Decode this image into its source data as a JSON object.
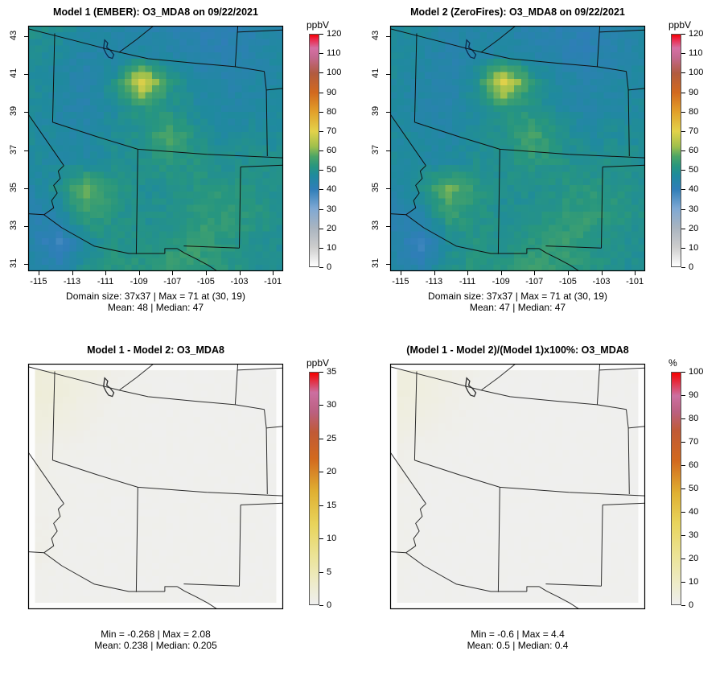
{
  "page": {
    "background": "#ffffff"
  },
  "basemap": {
    "lines": [
      [
        [
          0.0,
          0.012
        ],
        [
          0.18,
          0.06
        ],
        [
          0.357,
          0.108
        ]
      ],
      [
        [
          0.357,
          0.108
        ],
        [
          0.425,
          0.056
        ],
        [
          0.492,
          0.0
        ]
      ],
      [
        [
          0.357,
          0.108
        ],
        [
          0.47,
          0.134
        ],
        [
          0.65,
          0.152
        ],
        [
          0.812,
          0.167
        ],
        [
          0.926,
          0.186
        ]
      ],
      [
        [
          0.822,
          0.0
        ],
        [
          0.812,
          0.167
        ]
      ],
      [
        [
          0.82,
          0.026
        ],
        [
          1.0,
          0.017
        ]
      ],
      [
        [
          0.926,
          0.186
        ],
        [
          0.934,
          0.262
        ],
        [
          0.938,
          0.531
        ]
      ],
      [
        [
          0.934,
          0.262
        ],
        [
          1.0,
          0.255
        ]
      ],
      [
        [
          0.104,
          0.031
        ],
        [
          0.096,
          0.393
        ]
      ],
      [
        [
          0.096,
          0.393
        ],
        [
          0.27,
          0.452
        ],
        [
          0.43,
          0.503
        ],
        [
          0.7,
          0.524
        ],
        [
          1.0,
          0.538
        ]
      ],
      [
        [
          0.43,
          0.503
        ],
        [
          0.424,
          0.93
        ]
      ],
      [
        [
          0.0,
          0.36
        ],
        [
          0.07,
          0.465
        ],
        [
          0.14,
          0.57
        ]
      ],
      [
        [
          0.14,
          0.57
        ],
        [
          0.118,
          0.592
        ],
        [
          0.126,
          0.622
        ],
        [
          0.1,
          0.65
        ],
        [
          0.114,
          0.682
        ],
        [
          0.092,
          0.712
        ],
        [
          0.1,
          0.742
        ],
        [
          0.062,
          0.77
        ]
      ],
      [
        [
          0.0,
          0.766
        ],
        [
          0.062,
          0.77
        ]
      ],
      [
        [
          0.062,
          0.77
        ],
        [
          0.132,
          0.823
        ],
        [
          0.26,
          0.898
        ],
        [
          0.395,
          0.928
        ],
        [
          0.536,
          0.928
        ]
      ],
      [
        [
          0.536,
          0.928
        ],
        [
          0.536,
          0.908
        ],
        [
          0.585,
          0.908
        ]
      ],
      [
        [
          0.585,
          0.908
        ],
        [
          0.613,
          0.926
        ],
        [
          0.66,
          0.95
        ],
        [
          0.705,
          0.975
        ],
        [
          0.742,
          1.0
        ]
      ],
      [
        [
          0.61,
          0.897
        ],
        [
          0.828,
          0.906
        ]
      ],
      [
        [
          0.828,
          0.906
        ],
        [
          0.833,
          0.575
        ]
      ],
      [
        [
          0.833,
          0.575
        ],
        [
          1.0,
          0.568
        ]
      ]
    ],
    "lake": [
      [
        0.3,
        0.058
      ],
      [
        0.312,
        0.07
      ],
      [
        0.308,
        0.088
      ],
      [
        0.322,
        0.1
      ],
      [
        0.336,
        0.118
      ],
      [
        0.33,
        0.133
      ],
      [
        0.315,
        0.128
      ],
      [
        0.305,
        0.112
      ],
      [
        0.296,
        0.092
      ],
      [
        0.298,
        0.072
      ]
    ]
  },
  "chart_data": [
    {
      "type": "heatmap",
      "title": "Model 1 (EMBER): O3_MDA8 on 09/22/2021",
      "stats": [
        "Domain size: 37x37 | Max = 71 at (30, 19)",
        "Mean: 48 | Median: 47"
      ],
      "axes": true,
      "xlim": [
        -115.62,
        -100.38
      ],
      "ylim": [
        30.62,
        43.55
      ],
      "xticks": [
        -115,
        -113,
        -111,
        -109,
        -107,
        -105,
        -103,
        -101
      ],
      "yticks": [
        31,
        33,
        35,
        37,
        39,
        41,
        43
      ],
      "grid_size": "37x37",
      "jitter": 1.6,
      "edge_value": null,
      "line_color": "#101010",
      "lake_color": "#0d2b4d",
      "colorbar": {
        "label": "ppbV",
        "min": 0,
        "max": 120,
        "step": 10,
        "palette": [
          [
            0,
            "#ffffff"
          ],
          [
            10,
            "#cdcdcd"
          ],
          [
            20,
            "#a9b4c0"
          ],
          [
            30,
            "#7ea8d4"
          ],
          [
            40,
            "#2f7eb8"
          ],
          [
            47,
            "#1f8a9e"
          ],
          [
            52,
            "#27967f"
          ],
          [
            57,
            "#4da566"
          ],
          [
            62,
            "#9fc04c"
          ],
          [
            70,
            "#e3d24a"
          ],
          [
            80,
            "#e2a02a"
          ],
          [
            90,
            "#d2691e"
          ],
          [
            100,
            "#b15b3f"
          ],
          [
            108,
            "#c4688e"
          ],
          [
            113,
            "#d66fa4"
          ],
          [
            118,
            "#ee2040"
          ],
          [
            120,
            "#f50000"
          ]
        ]
      },
      "values": [
        [
          50,
          49,
          46,
          45,
          44,
          43,
          42,
          41,
          43,
          45
        ],
        [
          49,
          47,
          44,
          45,
          46,
          45,
          43,
          42,
          44,
          46
        ],
        [
          48,
          46,
          43,
          50,
          70,
          52,
          46,
          44,
          45,
          46
        ],
        [
          47,
          45,
          44,
          47,
          52,
          50,
          47,
          45,
          46,
          47
        ],
        [
          48,
          46,
          45,
          48,
          50,
          57,
          50,
          47,
          48,
          48
        ],
        [
          47,
          46,
          46,
          49,
          50,
          52,
          51,
          49,
          50,
          49
        ],
        [
          45,
          50,
          59,
          52,
          49,
          49,
          51,
          52,
          51,
          49
        ],
        [
          42,
          45,
          54,
          51,
          49,
          50,
          52,
          54,
          52,
          50
        ],
        [
          44,
          38,
          48,
          51,
          50,
          52,
          55,
          52,
          50,
          49
        ],
        [
          46,
          43,
          50,
          52,
          52,
          54,
          53,
          52,
          50,
          48
        ]
      ]
    },
    {
      "type": "heatmap",
      "title": "Model 2 (ZeroFires): O3_MDA8 on 09/22/2021",
      "stats": [
        "Domain size: 37x37 | Max = 71 at (30, 19)",
        "Mean: 47 | Median: 47"
      ],
      "axes": true,
      "xlim": [
        -115.62,
        -100.38
      ],
      "ylim": [
        30.62,
        43.55
      ],
      "xticks": [
        -115,
        -113,
        -111,
        -109,
        -107,
        -105,
        -103,
        -101
      ],
      "yticks": [
        31,
        33,
        35,
        37,
        39,
        41,
        43
      ],
      "grid_size": "37x37",
      "jitter": 1.6,
      "edge_value": null,
      "line_color": "#101010",
      "lake_color": "#0d2b4d",
      "colorbar": {
        "label": "ppbV",
        "min": 0,
        "max": 120,
        "step": 10,
        "palette": [
          [
            0,
            "#ffffff"
          ],
          [
            10,
            "#cdcdcd"
          ],
          [
            20,
            "#a9b4c0"
          ],
          [
            30,
            "#7ea8d4"
          ],
          [
            40,
            "#2f7eb8"
          ],
          [
            47,
            "#1f8a9e"
          ],
          [
            52,
            "#27967f"
          ],
          [
            57,
            "#4da566"
          ],
          [
            62,
            "#9fc04c"
          ],
          [
            70,
            "#e3d24a"
          ],
          [
            80,
            "#e2a02a"
          ],
          [
            90,
            "#d2691e"
          ],
          [
            100,
            "#b15b3f"
          ],
          [
            108,
            "#c4688e"
          ],
          [
            113,
            "#d66fa4"
          ],
          [
            118,
            "#ee2040"
          ],
          [
            120,
            "#f50000"
          ]
        ]
      },
      "values": [
        [
          48,
          47,
          45,
          45,
          44,
          43,
          42,
          41,
          43,
          45
        ],
        [
          47,
          46,
          43,
          45,
          46,
          45,
          43,
          42,
          44,
          46
        ],
        [
          47,
          45,
          43,
          50,
          70,
          52,
          46,
          44,
          45,
          46
        ],
        [
          46,
          45,
          44,
          47,
          52,
          50,
          47,
          45,
          46,
          47
        ],
        [
          47,
          46,
          45,
          48,
          50,
          57,
          50,
          47,
          48,
          48
        ],
        [
          47,
          46,
          46,
          49,
          50,
          52,
          51,
          49,
          50,
          49
        ],
        [
          45,
          50,
          59,
          52,
          49,
          49,
          51,
          52,
          51,
          49
        ],
        [
          42,
          45,
          54,
          51,
          49,
          50,
          52,
          54,
          52,
          50
        ],
        [
          44,
          38,
          48,
          51,
          50,
          52,
          55,
          52,
          50,
          49
        ],
        [
          46,
          43,
          50,
          52,
          52,
          54,
          53,
          52,
          50,
          48
        ]
      ]
    },
    {
      "type": "heatmap",
      "title": "Model 1 - Model 2: O3_MDA8",
      "stats": [
        "Min = -0.268 | Max = 2.08",
        "Mean: 0.238 |  Median: 0.205"
      ],
      "axes": false,
      "xlim": [
        -115.62,
        -100.38
      ],
      "ylim": [
        30.62,
        43.55
      ],
      "xticks": [],
      "yticks": [],
      "grid_size": "37x37",
      "jitter": 0.12,
      "edge_value": -0.5,
      "line_color": "#2e2e2e",
      "lake_color": "#2e2e2e",
      "colorbar": {
        "label": "ppbV",
        "min": 0,
        "max": 35,
        "step": 5,
        "palette": [
          [
            -0.5,
            "#fdfdfd"
          ],
          [
            0,
            "#efefef"
          ],
          [
            3,
            "#eeeccc"
          ],
          [
            7,
            "#ece49a"
          ],
          [
            12,
            "#e8d45c"
          ],
          [
            17,
            "#e0b032"
          ],
          [
            22,
            "#d2691e"
          ],
          [
            26,
            "#c05a36"
          ],
          [
            29,
            "#bb6080"
          ],
          [
            32,
            "#cc6fa0"
          ],
          [
            35,
            "#f50000"
          ]
        ]
      },
      "values": [
        [
          1.8,
          1.6,
          1.2,
          0.6,
          0.3,
          0.2,
          0.2,
          0.2,
          0.2,
          0.2
        ],
        [
          2.0,
          1.7,
          1.0,
          0.4,
          0.3,
          0.2,
          0.2,
          0.2,
          0.2,
          0.2
        ],
        [
          1.6,
          1.2,
          0.7,
          0.3,
          0.2,
          0.2,
          0.2,
          0.2,
          0.2,
          0.2
        ],
        [
          0.9,
          0.5,
          0.3,
          0.3,
          0.2,
          0.2,
          0.2,
          0.2,
          0.2,
          0.2
        ],
        [
          0.8,
          0.3,
          0.2,
          0.2,
          0.2,
          0.2,
          0.2,
          0.2,
          0.2,
          0.2
        ],
        [
          0.5,
          0.3,
          0.2,
          0.2,
          0.2,
          0.2,
          0.2,
          0.2,
          0.2,
          0.2
        ],
        [
          0.6,
          0.3,
          0.2,
          0.2,
          0.2,
          0.2,
          0.2,
          0.2,
          0.2,
          0.2
        ],
        [
          0.7,
          0.3,
          0.2,
          0.2,
          0.2,
          0.2,
          0.2,
          0.2,
          0.2,
          0.2
        ],
        [
          0.4,
          0.2,
          0.2,
          0.2,
          0.2,
          0.2,
          0.2,
          0.2,
          0.2,
          0.2
        ],
        [
          0.3,
          0.2,
          0.2,
          0.2,
          0.2,
          0.2,
          0.2,
          0.2,
          0.2,
          0.2
        ]
      ]
    },
    {
      "type": "heatmap",
      "title": "(Model 1 - Model 2)/(Model 1)x100%: O3_MDA8",
      "stats": [
        "Min = -0.6 | Max = 4.4",
        "Mean: 0.5 |  Median: 0.4"
      ],
      "axes": false,
      "xlim": [
        -115.62,
        -100.38
      ],
      "ylim": [
        30.62,
        43.55
      ],
      "xticks": [],
      "yticks": [],
      "grid_size": "37x37",
      "jitter": 0.25,
      "edge_value": -1.5,
      "line_color": "#2e2e2e",
      "lake_color": "#2e2e2e",
      "colorbar": {
        "label": "%",
        "min": 0,
        "max": 100,
        "step": 10,
        "palette": [
          [
            -1.5,
            "#fdfdfd"
          ],
          [
            0,
            "#efefef"
          ],
          [
            8,
            "#eeeccc"
          ],
          [
            20,
            "#ece49a"
          ],
          [
            35,
            "#e8d45c"
          ],
          [
            48,
            "#e0b032"
          ],
          [
            62,
            "#d2691e"
          ],
          [
            75,
            "#c05a36"
          ],
          [
            83,
            "#bb6080"
          ],
          [
            90,
            "#cc6fa0"
          ],
          [
            100,
            "#f50000"
          ]
        ]
      },
      "values": [
        [
          4.0,
          3.5,
          2.6,
          1.2,
          0.5,
          0.4,
          0.4,
          0.4,
          0.4,
          0.4
        ],
        [
          4.3,
          3.6,
          2.1,
          0.8,
          0.5,
          0.4,
          0.4,
          0.4,
          0.4,
          0.4
        ],
        [
          3.4,
          2.5,
          1.4,
          0.6,
          0.4,
          0.4,
          0.4,
          0.4,
          0.4,
          0.4
        ],
        [
          1.9,
          1.0,
          0.6,
          0.5,
          0.4,
          0.4,
          0.4,
          0.4,
          0.4,
          0.4
        ],
        [
          1.7,
          0.6,
          0.4,
          0.4,
          0.4,
          0.4,
          0.4,
          0.4,
          0.4,
          0.4
        ],
        [
          1.0,
          0.5,
          0.4,
          0.4,
          0.4,
          0.4,
          0.4,
          0.4,
          0.4,
          0.4
        ],
        [
          1.2,
          0.5,
          0.4,
          0.4,
          0.4,
          0.4,
          0.4,
          0.4,
          0.4,
          0.4
        ],
        [
          1.4,
          0.6,
          0.4,
          0.4,
          0.4,
          0.4,
          0.4,
          0.4,
          0.4,
          0.4
        ],
        [
          0.8,
          0.4,
          0.4,
          0.4,
          0.4,
          0.4,
          0.4,
          0.4,
          0.4,
          0.4
        ],
        [
          0.6,
          0.4,
          0.4,
          0.4,
          0.4,
          0.4,
          0.4,
          0.4,
          0.4,
          0.4
        ]
      ]
    }
  ]
}
